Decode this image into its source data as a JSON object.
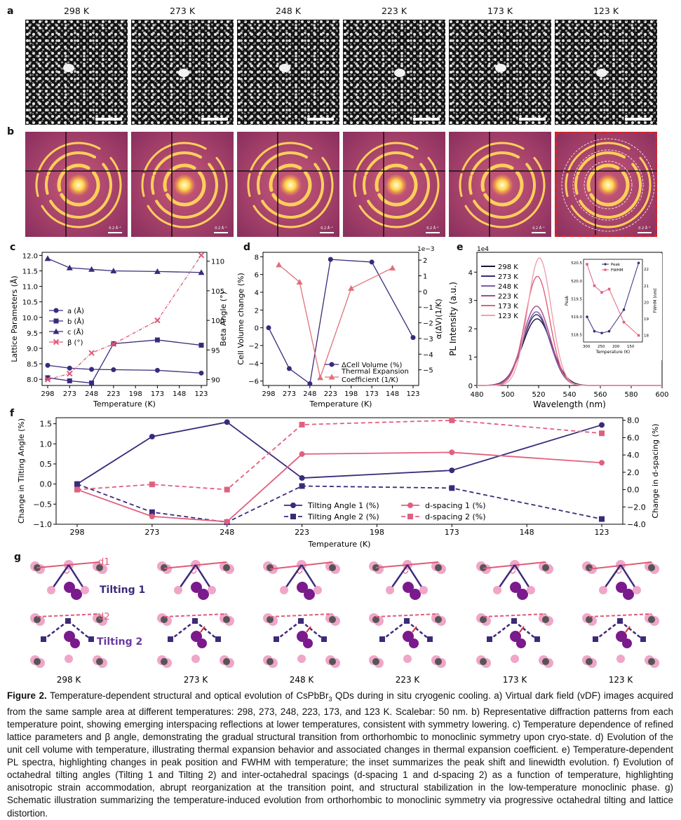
{
  "panel_labels": {
    "a": "a",
    "b": "b",
    "c": "c",
    "d": "d",
    "e": "e",
    "f": "f",
    "g": "g"
  },
  "temperatures": [
    "298 K",
    "273 K",
    "248 K",
    "223 K",
    "173 K",
    "123 K"
  ],
  "diffraction_scale_label": "0.2 Å⁻¹",
  "colors": {
    "purple": "#3a2a7a",
    "pink": "#e0607e",
    "red_dashed": "#dd2222"
  },
  "chart_data": [
    {
      "id": "c",
      "type": "line",
      "x": [
        298,
        273,
        248,
        223,
        173,
        123
      ],
      "xticks": [
        "298",
        "273",
        "248",
        "223",
        "198",
        "173",
        "148",
        "123"
      ],
      "xlabel": "Temperature (K)",
      "ylabel": "Lattice Parameters (Å)",
      "ylabel_right": "Beta Angle (°)",
      "ylim": [
        7.8,
        12.1
      ],
      "ylim_right": [
        89,
        111.5
      ],
      "yticks": [
        "8.0",
        "8.5",
        "9.0",
        "9.5",
        "10.0",
        "10.5",
        "11.0",
        "11.5",
        "12.0"
      ],
      "yticks_right": [
        "90",
        "95",
        "100",
        "105",
        "110"
      ],
      "series": [
        {
          "name": "a (Å)",
          "values": [
            8.45,
            8.36,
            8.32,
            8.31,
            8.29,
            8.2
          ]
        },
        {
          "name": "b (Å)",
          "values": [
            8.05,
            7.95,
            7.88,
            9.15,
            9.27,
            9.1
          ]
        },
        {
          "name": "c (Å)",
          "values": [
            11.9,
            11.6,
            11.55,
            11.5,
            11.48,
            11.45
          ]
        },
        {
          "name": "β (°)",
          "values": [
            90.0,
            91.0,
            94.5,
            96.0,
            100.0,
            111.0
          ]
        }
      ]
    },
    {
      "id": "d",
      "type": "line",
      "x": [
        298,
        273,
        248,
        223,
        173,
        123
      ],
      "xticks": [
        "298",
        "273",
        "248",
        "223",
        "198",
        "173",
        "148",
        "123"
      ],
      "xlabel": "Temperature (K)",
      "ylabel": "Cell Volume change (%)",
      "ylabel_right": "α(ΔV)(1/K)",
      "right_scale": "1e−3",
      "ylim": [
        -6.5,
        8.5
      ],
      "ylim_right": [
        -6,
        2.5
      ],
      "yticks": [
        "−6",
        "−4",
        "−2",
        "0",
        "2",
        "4",
        "6",
        "8"
      ],
      "yticks_right": [
        "−5",
        "−4",
        "−3",
        "−2",
        "−1",
        "0",
        "1",
        "2"
      ],
      "series": [
        {
          "name": "ΔCell Volume (%)",
          "values": [
            0,
            -4.6,
            -6.3,
            7.7,
            7.4,
            -1.1
          ]
        },
        {
          "name": "Thermal Expansion Coefficient (1/K)",
          "x": [
            285.5,
            260.5,
            235.5,
            198,
            148
          ],
          "values": [
            1.7,
            0.6,
            -5.5,
            0.2,
            1.5
          ]
        }
      ]
    },
    {
      "id": "e",
      "type": "line",
      "xlabel": "Wavelength (nm)",
      "ylabel": "PL Intensity (a.u.)",
      "scale": "1e4",
      "xlim": [
        480,
        600
      ],
      "ylim": [
        0,
        4.7
      ],
      "xticks": [
        "480",
        "500",
        "520",
        "540",
        "560",
        "580",
        "600"
      ],
      "yticks": [
        "0",
        "1",
        "2",
        "3",
        "4"
      ],
      "series": [
        {
          "name": "298 K",
          "peak_nm": 519.0,
          "amplitude": 2.35,
          "fwhm_nm": 22.3
        },
        {
          "name": "273 K",
          "peak_nm": 518.6,
          "amplitude": 2.5,
          "fwhm_nm": 21.0
        },
        {
          "name": "248 K",
          "peak_nm": 518.55,
          "amplitude": 2.6,
          "fwhm_nm": 20.6
        },
        {
          "name": "223 K",
          "peak_nm": 518.6,
          "amplitude": 2.8,
          "fwhm_nm": 20.8
        },
        {
          "name": "173 K",
          "peak_nm": 519.2,
          "amplitude": 3.85,
          "fwhm_nm": 18.8
        },
        {
          "name": "123 K",
          "peak_nm": 520.5,
          "amplitude": 4.5,
          "fwhm_nm": 18.0
        }
      ],
      "inset": {
        "xlabel": "Temperature (K)",
        "ylabel": "Peak",
        "ylabel_right": "FWHM (nm)",
        "x": [
          298,
          273,
          248,
          223,
          173,
          123
        ],
        "xticks": [
          "300",
          "250",
          "200",
          "150"
        ],
        "yticks": [
          "518.5",
          "519.0",
          "519.5",
          "520.0",
          "520.5"
        ],
        "yticks_right": [
          "18",
          "19",
          "20",
          "21",
          "22"
        ],
        "series": [
          {
            "name": "Peak",
            "values": [
              519.0,
              518.6,
              518.55,
              518.6,
              519.2,
              520.5
            ]
          },
          {
            "name": "FWHM",
            "values": [
              22.3,
              21.0,
              20.6,
              20.8,
              18.8,
              18.0
            ]
          }
        ]
      }
    },
    {
      "id": "f",
      "type": "line",
      "x": [
        298,
        273,
        248,
        223,
        173,
        123
      ],
      "xticks": [
        "298",
        "273",
        "248",
        "223",
        "198",
        "173",
        "148",
        "123"
      ],
      "xlabel": "Temperature (K)",
      "ylabel": "Change in Tilting Angle (%)",
      "ylabel_right": "Change in d-spacing (%)",
      "ylim": [
        -1.0,
        1.65
      ],
      "ylim_right": [
        -4.0,
        8.3
      ],
      "yticks": [
        "−1.0",
        "−0.5",
        "0.0",
        "0.5",
        "1.0",
        "1.5"
      ],
      "yticks_right": [
        "−4.0",
        "−2.0",
        "0.0",
        "2.0",
        "4.0",
        "6.0",
        "8.0"
      ],
      "series": [
        {
          "name": "Tilting Angle 1 (%)",
          "axis": "left",
          "values": [
            0.0,
            1.18,
            1.54,
            0.15,
            0.34,
            1.47
          ]
        },
        {
          "name": "Tilting Angle 2 (%)",
          "axis": "left",
          "values": [
            0.0,
            -0.7,
            -0.95,
            -0.05,
            -0.1,
            -0.87
          ]
        },
        {
          "name": "d-spacing 1 (%)",
          "axis": "right",
          "values": [
            0.0,
            -3.1,
            -3.7,
            4.1,
            4.3,
            3.1
          ]
        },
        {
          "name": "d-spacing 2 (%)",
          "axis": "right",
          "values": [
            0.0,
            0.6,
            0.0,
            7.5,
            8.0,
            6.5
          ]
        }
      ]
    }
  ],
  "schematic": {
    "d1_label": "d1",
    "d2_label": "d2",
    "tilting1_label": "Tilting 1",
    "tilting2_label": "Tilting 2"
  },
  "caption": {
    "figure_label": "Figure 2.",
    "text_before_sub": " Temperature-dependent structural and optical evolution of CsPbBr",
    "subscript": "3",
    "text_after_sub": " QDs during in situ cryogenic cooling. a) Virtual dark field (vDF) images acquired from the same sample area at different temperatures: 298, 273, 248, 223, 173, and 123 K. Scalebar: 50 nm. b) Representative diffraction patterns from each temperature point, showing emerging interspacing reflections at lower temperatures, consistent with symmetry lowering. c) Temperature dependence of refined lattice parameters and β angle, demonstrating the gradual structural transition from orthorhombic to monoclinic symmetry upon cryo-state. d) Evolution of the unit cell volume with temperature, illustrating thermal expansion behavior and associated changes in thermal expansion coefficient. e) Temperature-dependent PL spectra, highlighting changes in peak position and FWHM with temperature; the inset summarizes the peak shift and linewidth evolution. f) Evolution of octahedral tilting angles (Tilting 1 and Tilting 2) and inter-octahedral spacings (d-spacing 1 and d-spacing 2) as a function of temperature, highlighting anisotropic strain accommodation, abrupt reorganization at the transition point, and structural stabilization in the low-temperature monoclinic phase. g) Schematic illustration summarizing the temperature-induced evolution from orthorhombic to monoclinic symmetry via progressive octahedral tilting and lattice distortion."
  }
}
